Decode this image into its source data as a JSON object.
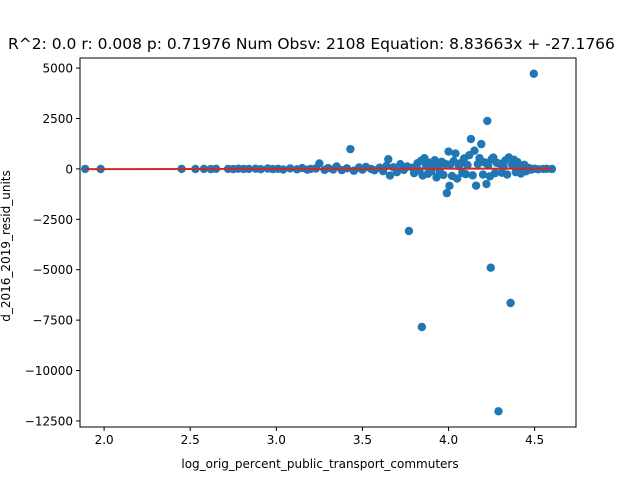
{
  "chart_data": {
    "type": "scatter",
    "title": "R^2: 0.0 r: 0.008 p: 0.71976 Num Obsv: 2108 Equation: 8.83663x + -27.1766",
    "xlabel": "log_orig_percent_public_transport_commuters",
    "ylabel": "d_2016_2019_resid_units",
    "xlim": [
      1.86,
      4.74
    ],
    "ylim": [
      -12800,
      5500
    ],
    "x_ticks": [
      2.0,
      2.5,
      3.0,
      3.5,
      4.0,
      4.5
    ],
    "x_tick_labels": [
      "2.0",
      "2.5",
      "3.0",
      "3.5",
      "4.0",
      "4.5"
    ],
    "y_ticks": [
      -12500,
      -10000,
      -7500,
      -5000,
      -2500,
      0,
      2500,
      5000
    ],
    "y_tick_labels": [
      "−12500",
      "−10000",
      "−7500",
      "−5000",
      "−2500",
      "0",
      "2500",
      "5000"
    ],
    "grid": false,
    "legend": "none",
    "colors": {
      "points": "#1f77b4",
      "fit_line": "#d62728",
      "axes": "#000000"
    },
    "fit_line": {
      "slope": 8.83663,
      "intercept": -27.1766,
      "x_range": [
        1.89,
        4.6
      ]
    },
    "series": [
      {
        "points": [
          [
            1.89,
            0
          ],
          [
            1.98,
            -5
          ],
          [
            2.45,
            0
          ],
          [
            2.53,
            -5
          ],
          [
            2.58,
            0
          ],
          [
            2.62,
            -10
          ],
          [
            2.65,
            5
          ],
          [
            2.72,
            0
          ],
          [
            2.75,
            -10
          ],
          [
            2.78,
            10
          ],
          [
            2.81,
            -5
          ],
          [
            2.84,
            0
          ],
          [
            2.88,
            10
          ],
          [
            2.91,
            -15
          ],
          [
            2.95,
            20
          ],
          [
            2.98,
            -10
          ],
          [
            3.01,
            5
          ],
          [
            3.04,
            -30
          ],
          [
            3.08,
            25
          ],
          [
            3.12,
            -20
          ],
          [
            3.15,
            40
          ],
          [
            3.18,
            -40
          ],
          [
            3.2,
            0
          ],
          [
            3.23,
            20
          ],
          [
            3.25,
            270
          ],
          [
            3.28,
            -50
          ],
          [
            3.3,
            40
          ],
          [
            3.33,
            -30
          ],
          [
            3.35,
            120
          ],
          [
            3.38,
            -60
          ],
          [
            3.41,
            30
          ],
          [
            3.43,
            980
          ],
          [
            3.45,
            -90
          ],
          [
            3.48,
            70
          ],
          [
            3.5,
            -40
          ],
          [
            3.52,
            100
          ],
          [
            3.55,
            0
          ],
          [
            3.57,
            -70
          ],
          [
            3.6,
            60
          ],
          [
            3.62,
            -110
          ],
          [
            3.64,
            150
          ],
          [
            3.65,
            480
          ],
          [
            3.66,
            -330
          ],
          [
            3.68,
            80
          ],
          [
            3.7,
            -160
          ],
          [
            3.72,
            230
          ],
          [
            3.74,
            -50
          ],
          [
            3.76,
            120
          ],
          [
            3.77,
            -3080
          ],
          [
            3.79,
            60
          ],
          [
            3.8,
            -210
          ],
          [
            3.82,
            280
          ],
          [
            3.83,
            -90
          ],
          [
            3.84,
            400
          ],
          [
            3.845,
            -7840
          ],
          [
            3.85,
            -330
          ],
          [
            3.86,
            530
          ],
          [
            3.87,
            150
          ],
          [
            3.88,
            -240
          ],
          [
            3.89,
            310
          ],
          [
            3.9,
            -120
          ],
          [
            3.91,
            200
          ],
          [
            3.92,
            430
          ],
          [
            3.93,
            -420
          ],
          [
            3.94,
            90
          ],
          [
            3.95,
            -150
          ],
          [
            3.96,
            350
          ],
          [
            3.97,
            -300
          ],
          [
            3.98,
            250
          ],
          [
            3.99,
            -1200
          ],
          [
            4.0,
            860
          ],
          [
            4.005,
            -840
          ],
          [
            4.01,
            220
          ],
          [
            4.02,
            -350
          ],
          [
            4.03,
            380
          ],
          [
            4.04,
            760
          ],
          [
            4.05,
            -480
          ],
          [
            4.06,
            130
          ],
          [
            4.07,
            280
          ],
          [
            4.08,
            -200
          ],
          [
            4.09,
            520
          ],
          [
            4.1,
            -260
          ],
          [
            4.11,
            190
          ],
          [
            4.12,
            680
          ],
          [
            4.13,
            1480
          ],
          [
            4.14,
            -320
          ],
          [
            4.15,
            900
          ],
          [
            4.16,
            -830
          ],
          [
            4.17,
            240
          ],
          [
            4.18,
            530
          ],
          [
            4.19,
            1230
          ],
          [
            4.2,
            -280
          ],
          [
            4.21,
            320
          ],
          [
            4.22,
            -750
          ],
          [
            4.225,
            2380
          ],
          [
            4.23,
            180
          ],
          [
            4.24,
            -370
          ],
          [
            4.245,
            -4900
          ],
          [
            4.25,
            480
          ],
          [
            4.26,
            560
          ],
          [
            4.27,
            -210
          ],
          [
            4.28,
            300
          ],
          [
            4.29,
            -12020
          ],
          [
            4.3,
            250
          ],
          [
            4.31,
            -190
          ],
          [
            4.32,
            130
          ],
          [
            4.33,
            420
          ],
          [
            4.34,
            -280
          ],
          [
            4.35,
            570
          ],
          [
            4.36,
            -6650
          ],
          [
            4.37,
            200
          ],
          [
            4.38,
            450
          ],
          [
            4.39,
            -160
          ],
          [
            4.4,
            340
          ],
          [
            4.41,
            120
          ],
          [
            4.42,
            -230
          ],
          [
            4.43,
            80
          ],
          [
            4.44,
            200
          ],
          [
            4.45,
            -120
          ],
          [
            4.46,
            60
          ],
          [
            4.47,
            30
          ],
          [
            4.48,
            -40
          ],
          [
            4.495,
            4720
          ],
          [
            4.5,
            10
          ],
          [
            4.52,
            -20
          ],
          [
            4.55,
            0
          ],
          [
            4.57,
            5
          ],
          [
            4.6,
            -5
          ]
        ]
      }
    ]
  }
}
